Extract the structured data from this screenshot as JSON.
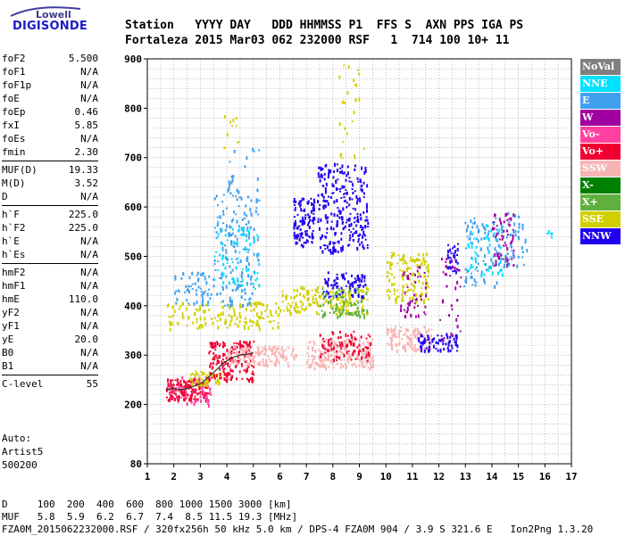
{
  "logo": {
    "line1": "Lowell",
    "line2": "DIGISONDE"
  },
  "header": {
    "row1": "Station   YYYY DAY   DDD HHMMSS P1  FFS S  AXN PPS IGA PS",
    "row2": "Fortaleza 2015 Mar03 062 232000 RSF   1  714 100 10+ 11"
  },
  "params": {
    "group1": [
      {
        "k": "foF2",
        "v": "5.500"
      },
      {
        "k": "foF1",
        "v": "N/A"
      },
      {
        "k": "foF1p",
        "v": "N/A"
      },
      {
        "k": "foE",
        "v": "N/A"
      },
      {
        "k": "foEp",
        "v": "0.46"
      },
      {
        "k": "fxI",
        "v": "5.85"
      },
      {
        "k": "foEs",
        "v": "N/A"
      },
      {
        "k": "fmin",
        "v": "2.30"
      }
    ],
    "group2": [
      {
        "k": "MUF(D)",
        "v": "19.33"
      },
      {
        "k": "M(D)",
        "v": "3.52"
      },
      {
        "k": "D",
        "v": "N/A"
      }
    ],
    "group3": [
      {
        "k": "h`F",
        "v": "225.0"
      },
      {
        "k": "h`F2",
        "v": "225.0"
      },
      {
        "k": "h`E",
        "v": "N/A"
      },
      {
        "k": "h`Es",
        "v": "N/A"
      }
    ],
    "group4": [
      {
        "k": "hmF2",
        "v": "N/A"
      },
      {
        "k": "hmF1",
        "v": "N/A"
      },
      {
        "k": "hmE",
        "v": "110.0"
      },
      {
        "k": "yF2",
        "v": "N/A"
      },
      {
        "k": "yF1",
        "v": "N/A"
      },
      {
        "k": "yE",
        "v": "20.0"
      },
      {
        "k": "B0",
        "v": "N/A"
      },
      {
        "k": "B1",
        "v": "N/A"
      }
    ],
    "group5": [
      {
        "k": "C-level",
        "v": "55"
      }
    ]
  },
  "auto": {
    "line1": "Auto:",
    "line2": "Artist5",
    "line3": "500200"
  },
  "footer": {
    "d_row": "D     100  200  400  600  800 1000 1500 3000 [km]",
    "muf_row": "MUF   5.8  5.9  6.2  6.7  7.4  8.5 11.5 19.3 [MHz]",
    "info_row": "FZA0M_2015062232000.RSF / 320fx256h 50 kHz 5.0 km / DPS-4 FZA0M 904 / 3.9 S 321.6 E   Ion2Png 1.3.20"
  },
  "legend": [
    {
      "label": "NoVal",
      "color": "#808080"
    },
    {
      "label": "NNE",
      "color": "#00e0ff"
    },
    {
      "label": "E",
      "color": "#40a0f0"
    },
    {
      "label": "W",
      "color": "#a000a0"
    },
    {
      "label": "Vo-",
      "color": "#ff40a0"
    },
    {
      "label": "Vo+",
      "color": "#f00030"
    },
    {
      "label": "SSW",
      "color": "#f8b4b4"
    },
    {
      "label": "X-",
      "color": "#008000"
    },
    {
      "label": "X+",
      "color": "#60b040"
    },
    {
      "label": "SSE",
      "color": "#d0d000"
    },
    {
      "label": "NNW",
      "color": "#2000f0"
    }
  ],
  "chart_data": {
    "type": "scatter",
    "xlabel": "",
    "ylabel": "",
    "xlim": [
      1,
      17
    ],
    "ylim": [
      80,
      900
    ],
    "xticks": [
      1,
      2,
      3,
      4,
      5,
      6,
      7,
      8,
      9,
      10,
      11,
      12,
      13,
      14,
      15,
      16,
      17
    ],
    "yticks": [
      80,
      200,
      300,
      400,
      500,
      600,
      700,
      800,
      900
    ],
    "grid": true,
    "clusters": [
      {
        "series": "Vo+",
        "x": [
          1.7,
          3.3
        ],
        "y": [
          210,
          255
        ],
        "n": 160
      },
      {
        "series": "Vo-",
        "x": [
          1.8,
          3.4
        ],
        "y": [
          200,
          260
        ],
        "n": 60
      },
      {
        "series": "SSE",
        "x": [
          2.6,
          3.8
        ],
        "y": [
          240,
          270
        ],
        "n": 60
      },
      {
        "series": "Vo+",
        "x": [
          3.3,
          5.0
        ],
        "y": [
          250,
          330
        ],
        "n": 170
      },
      {
        "series": "SSW",
        "x": [
          4.0,
          6.6
        ],
        "y": [
          280,
          320
        ],
        "n": 150
      },
      {
        "series": "SSW",
        "x": [
          7.0,
          9.5
        ],
        "y": [
          275,
          335
        ],
        "n": 200
      },
      {
        "series": "Vo+",
        "x": [
          7.4,
          9.4
        ],
        "y": [
          290,
          350
        ],
        "n": 80
      },
      {
        "series": "SSW",
        "x": [
          10.0,
          11.7
        ],
        "y": [
          310,
          360
        ],
        "n": 120
      },
      {
        "series": "SSE",
        "x": [
          1.7,
          6.0
        ],
        "y": [
          355,
          410
        ],
        "n": 150
      },
      {
        "series": "SSE",
        "x": [
          6.0,
          9.3
        ],
        "y": [
          385,
          440
        ],
        "n": 160
      },
      {
        "series": "X+",
        "x": [
          7.4,
          9.3
        ],
        "y": [
          380,
          440
        ],
        "n": 80
      },
      {
        "series": "SSE",
        "x": [
          10.0,
          11.6
        ],
        "y": [
          410,
          510
        ],
        "n": 140
      },
      {
        "series": "E",
        "x": [
          2.0,
          5.0
        ],
        "y": [
          400,
          470
        ],
        "n": 120
      },
      {
        "series": "E",
        "x": [
          3.5,
          5.2
        ],
        "y": [
          470,
          640
        ],
        "n": 130
      },
      {
        "series": "NNE",
        "x": [
          3.5,
          5.2
        ],
        "y": [
          430,
          560
        ],
        "n": 70
      },
      {
        "series": "NNW",
        "x": [
          6.5,
          7.3
        ],
        "y": [
          520,
          620
        ],
        "n": 110
      },
      {
        "series": "NNW",
        "x": [
          7.4,
          9.3
        ],
        "y": [
          510,
          690
        ],
        "n": 260
      },
      {
        "series": "NNW",
        "x": [
          7.6,
          9.2
        ],
        "y": [
          420,
          470
        ],
        "n": 80
      },
      {
        "series": "W",
        "x": [
          10.5,
          11.5
        ],
        "y": [
          380,
          480
        ],
        "n": 50
      },
      {
        "series": "NNW",
        "x": [
          11.2,
          12.7
        ],
        "y": [
          310,
          345
        ],
        "n": 70
      },
      {
        "series": "NNW",
        "x": [
          12.3,
          12.7
        ],
        "y": [
          470,
          530
        ],
        "n": 30
      },
      {
        "series": "W",
        "x": [
          12.0,
          12.8
        ],
        "y": [
          330,
          500
        ],
        "n": 35
      },
      {
        "series": "E",
        "x": [
          12.9,
          14.3
        ],
        "y": [
          440,
          580
        ],
        "n": 80
      },
      {
        "series": "NNE",
        "x": [
          13.0,
          14.4
        ],
        "y": [
          460,
          570
        ],
        "n": 50
      },
      {
        "series": "W",
        "x": [
          14.0,
          14.8
        ],
        "y": [
          480,
          590
        ],
        "n": 60
      },
      {
        "series": "E",
        "x": [
          14.3,
          15.3
        ],
        "y": [
          480,
          590
        ],
        "n": 45
      },
      {
        "series": "NNE",
        "x": [
          15.8,
          16.3
        ],
        "y": [
          540,
          560
        ],
        "n": 5
      },
      {
        "series": "SSE",
        "x": [
          3.8,
          4.5
        ],
        "y": [
          720,
          800
        ],
        "n": 10
      },
      {
        "series": "SSE",
        "x": [
          8.2,
          9.2
        ],
        "y": [
          700,
          890
        ],
        "n": 25
      },
      {
        "series": "E",
        "x": [
          4.0,
          5.2
        ],
        "y": [
          640,
          720
        ],
        "n": 15
      }
    ],
    "trace": {
      "series": "NoVal",
      "x": [
        1.7,
        2.0,
        2.3,
        2.6,
        3.0,
        3.3,
        3.6,
        3.9,
        4.2,
        4.5,
        4.8,
        5.0
      ],
      "y": [
        230,
        232,
        230,
        234,
        242,
        255,
        270,
        285,
        295,
        300,
        302,
        305
      ]
    }
  }
}
